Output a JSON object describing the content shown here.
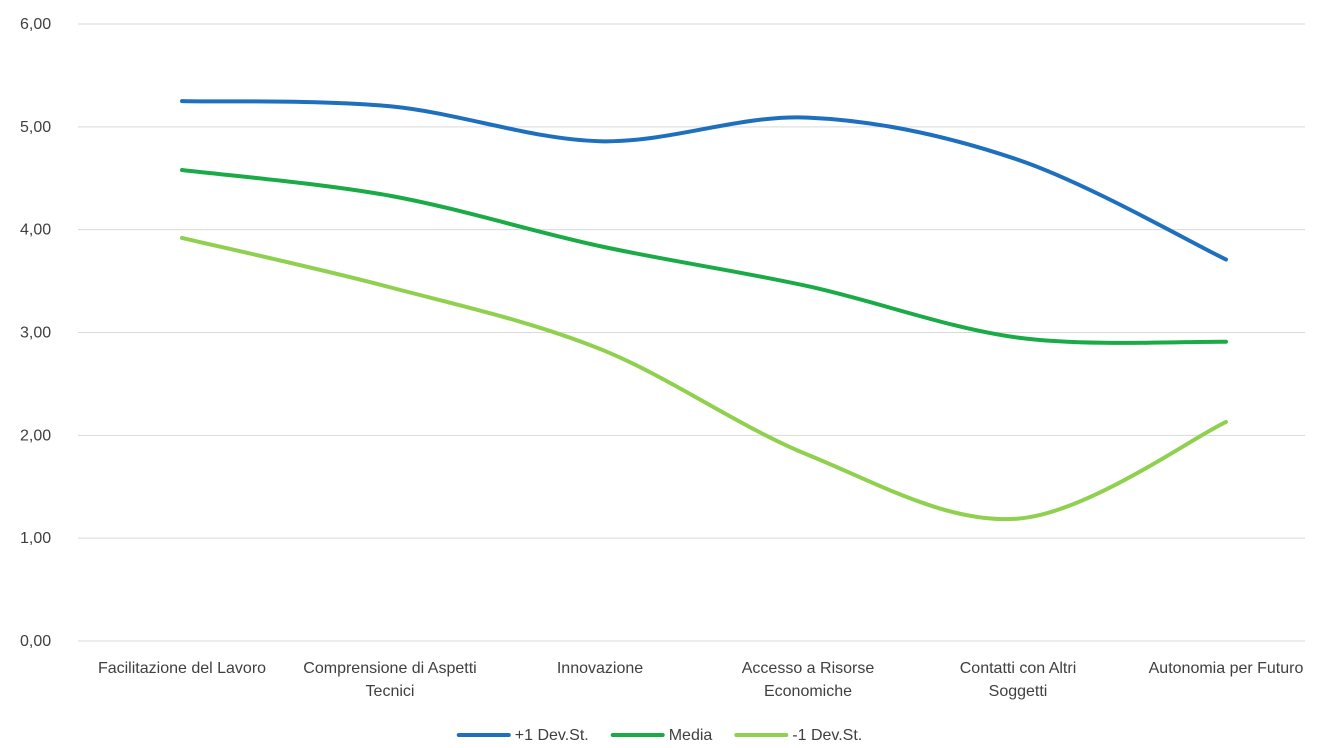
{
  "chart_data": {
    "type": "line",
    "smooth": true,
    "title": "",
    "xlabel": "",
    "ylabel": "",
    "categories": [
      [
        "Facilitazione del Lavoro"
      ],
      [
        "Comprensione di Aspetti",
        "Tecnici"
      ],
      [
        "Innovazione"
      ],
      [
        "Accesso a Risorse",
        "Economiche"
      ],
      [
        "Contatti con Altri",
        "Soggetti"
      ],
      [
        "Autonomia per Futuro"
      ]
    ],
    "ylim": [
      0,
      6
    ],
    "yticks": [
      "0,00",
      "1,00",
      "2,00",
      "3,00",
      "4,00",
      "5,00",
      "6,00"
    ],
    "grid": true,
    "legend_position": "bottom",
    "series": [
      {
        "name": "+1 Dev.St.",
        "color": "#1f6fbf",
        "values": [
          5.25,
          5.2,
          4.86,
          5.09,
          4.68,
          3.71
        ]
      },
      {
        "name": "Media",
        "color": "#1aab47",
        "values": [
          4.58,
          4.33,
          3.84,
          3.45,
          2.95,
          2.91
        ]
      },
      {
        "name": "-1 Dev.St.",
        "color": "#8fd14f",
        "values": [
          3.92,
          3.44,
          2.84,
          1.81,
          1.19,
          2.13
        ]
      }
    ]
  }
}
